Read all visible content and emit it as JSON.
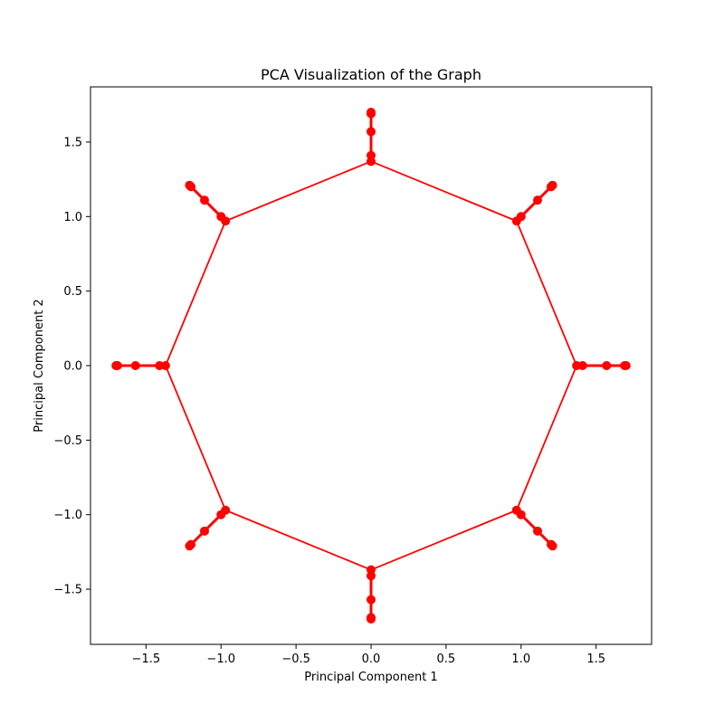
{
  "chart_data": {
    "type": "line",
    "title": "PCA Visualization of the Graph",
    "xlabel": "Principal Component 1",
    "ylabel": "Principal Component 2",
    "xlim": [
      -1.87,
      1.87
    ],
    "ylim": [
      -1.87,
      1.87
    ],
    "xticks": [
      -1.5,
      -1.0,
      -0.5,
      0.0,
      0.5,
      1.0,
      1.5
    ],
    "yticks": [
      -1.5,
      -1.0,
      -0.5,
      0.0,
      0.5,
      1.0,
      1.5
    ],
    "xtick_labels": [
      "−1.5",
      "−1.0",
      "−0.5",
      "0.0",
      "0.5",
      "1.0",
      "1.5"
    ],
    "ytick_labels": [
      "−1.5",
      "−1.0",
      "−0.5",
      "0.0",
      "0.5",
      "1.0",
      "1.5"
    ],
    "grid": false,
    "line_color": "#ff0000",
    "marker_color": "#ff0000",
    "ring": [
      [
        1.37,
        0.0
      ],
      [
        0.97,
        0.97
      ],
      [
        0.0,
        1.37
      ],
      [
        -0.97,
        0.97
      ],
      [
        -1.37,
        0.0
      ],
      [
        -0.97,
        -0.97
      ],
      [
        0.0,
        -1.37
      ],
      [
        0.97,
        -0.97
      ]
    ],
    "spokes": [
      [
        [
          1.37,
          0.0
        ],
        [
          1.41,
          0.0
        ],
        [
          1.57,
          0.0
        ],
        [
          1.69,
          0.0
        ],
        [
          1.7,
          0.0
        ]
      ],
      [
        [
          0.97,
          0.97
        ],
        [
          1.0,
          1.0
        ],
        [
          1.11,
          1.11
        ],
        [
          1.2,
          1.2
        ],
        [
          1.21,
          1.21
        ]
      ],
      [
        [
          0.0,
          1.37
        ],
        [
          0.0,
          1.41
        ],
        [
          0.0,
          1.57
        ],
        [
          0.0,
          1.69
        ],
        [
          0.0,
          1.7
        ]
      ],
      [
        [
          -0.97,
          0.97
        ],
        [
          -1.0,
          1.0
        ],
        [
          -1.11,
          1.11
        ],
        [
          -1.2,
          1.2
        ],
        [
          -1.21,
          1.21
        ]
      ],
      [
        [
          -1.37,
          0.0
        ],
        [
          -1.41,
          0.0
        ],
        [
          -1.57,
          0.0
        ],
        [
          -1.69,
          0.0
        ],
        [
          -1.7,
          0.0
        ]
      ],
      [
        [
          -0.97,
          -0.97
        ],
        [
          -1.0,
          -1.0
        ],
        [
          -1.11,
          -1.11
        ],
        [
          -1.2,
          -1.2
        ],
        [
          -1.21,
          -1.21
        ]
      ],
      [
        [
          0.0,
          -1.37
        ],
        [
          0.0,
          -1.41
        ],
        [
          0.0,
          -1.57
        ],
        [
          0.0,
          -1.69
        ],
        [
          0.0,
          -1.7
        ]
      ],
      [
        [
          0.97,
          -0.97
        ],
        [
          1.0,
          -1.0
        ],
        [
          1.11,
          -1.11
        ],
        [
          1.2,
          -1.2
        ],
        [
          1.21,
          -1.21
        ]
      ]
    ]
  }
}
